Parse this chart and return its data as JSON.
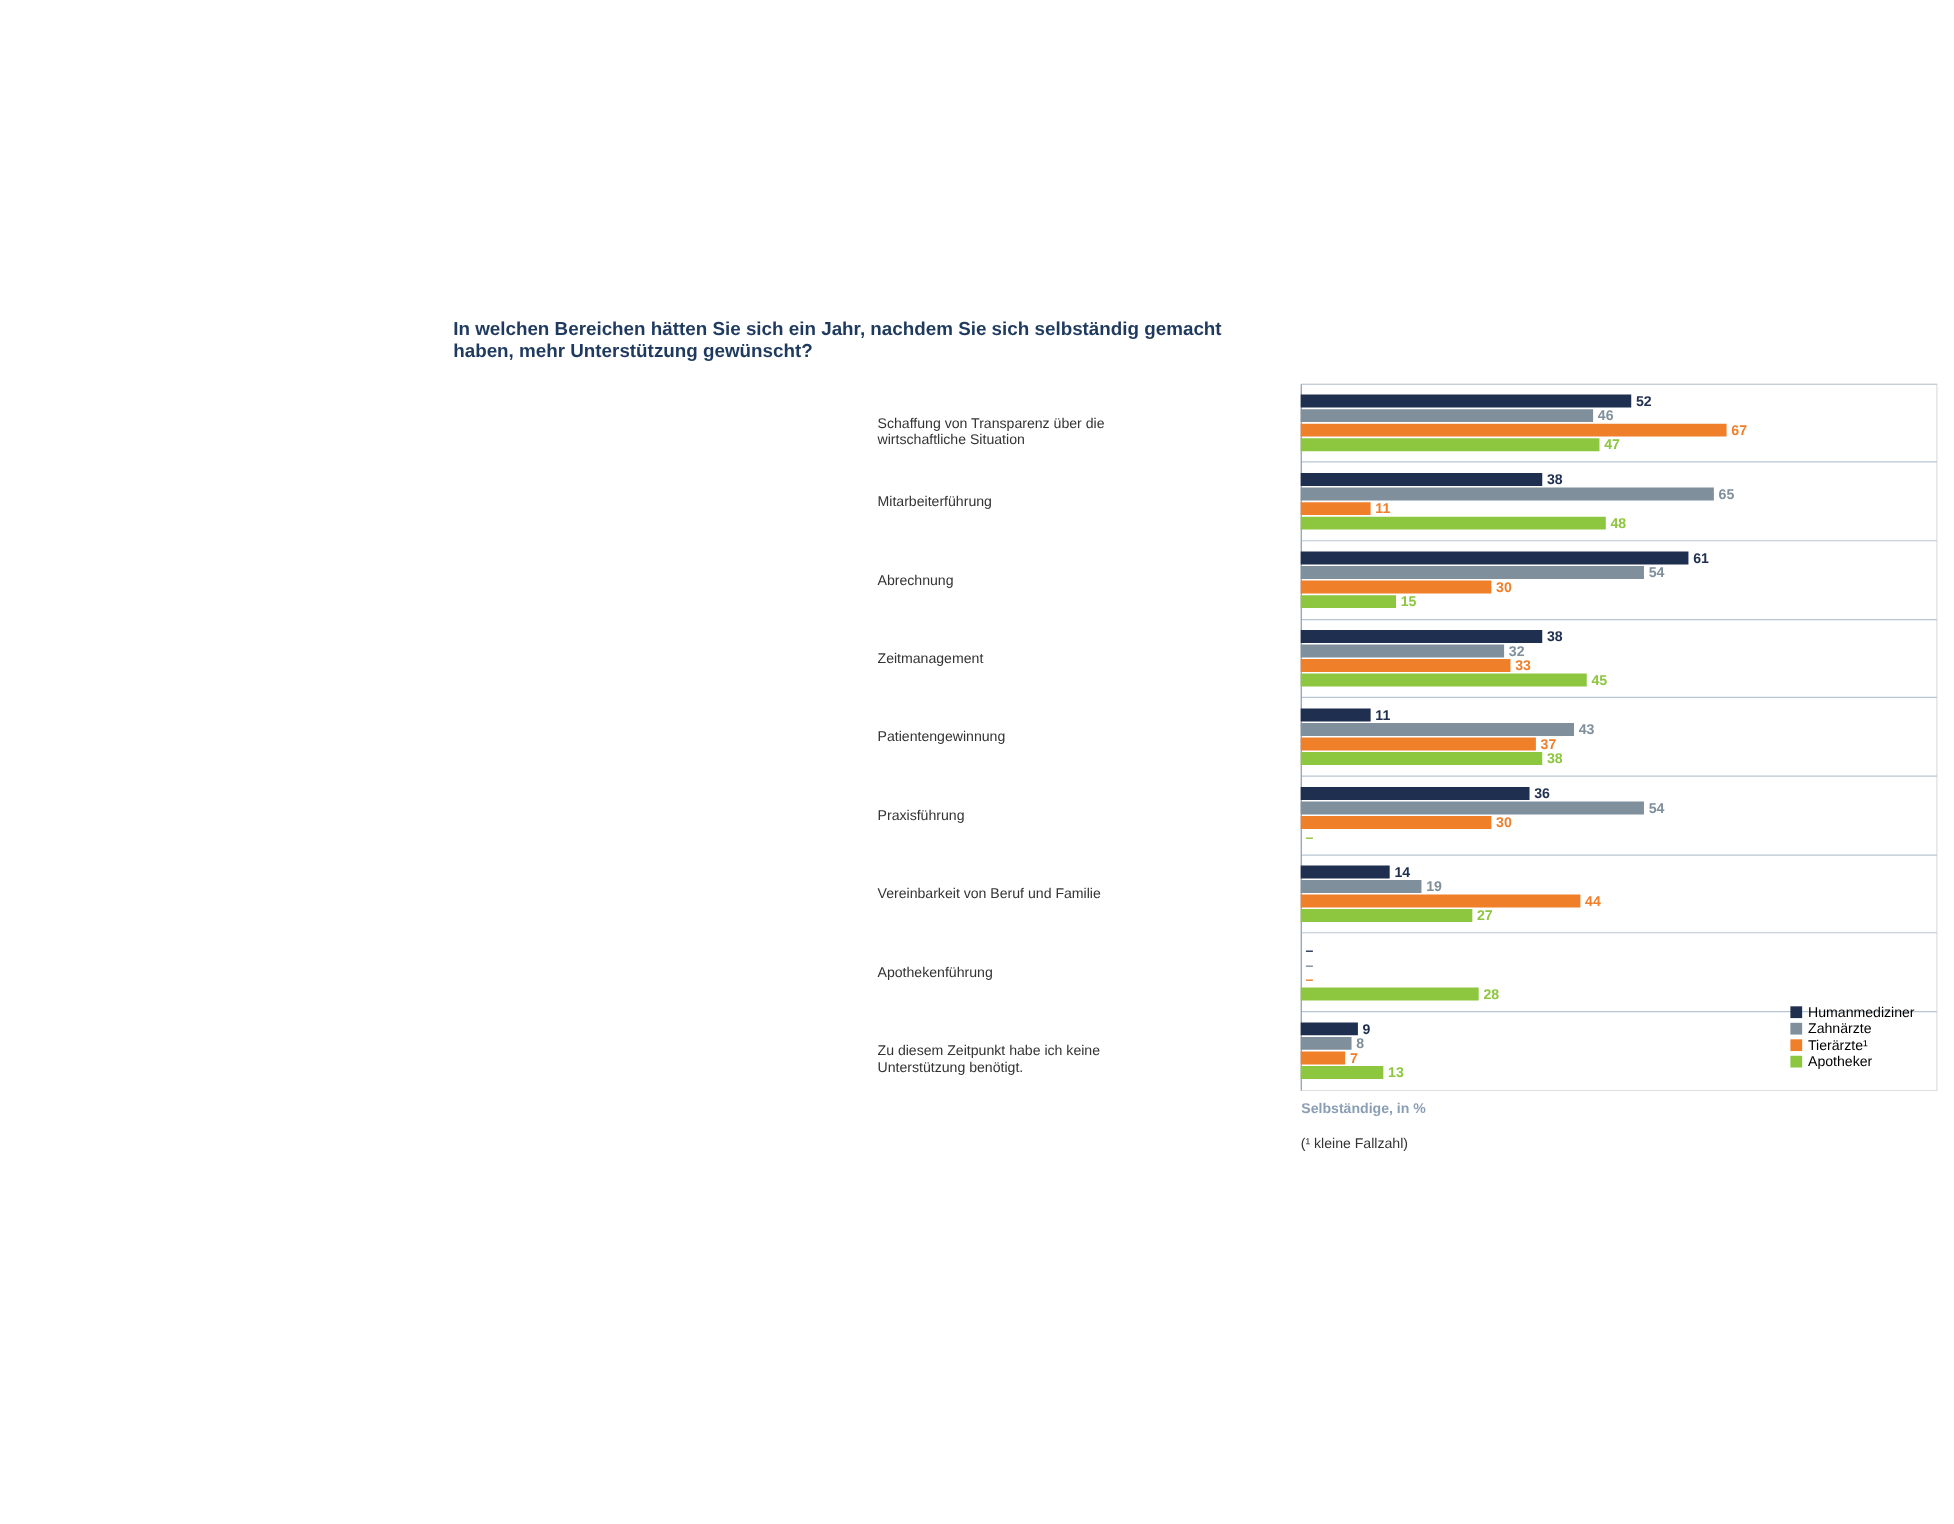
{
  "chart_data": {
    "type": "bar",
    "orientation": "horizontal",
    "title": "In welchen Bereichen hätten Sie sich ein Jahr, nachdem Sie sich selbständig gemacht haben, mehr Unterstützung gewünscht?",
    "categories": [
      "Schaffung von Transparenz über die wirtschaftliche Situation",
      "Mitarbeiterführung",
      "Abrechnung",
      "Zeitmanagement",
      "Patientengewinnung",
      "Praxisführung",
      "Vereinbarkeit von Beruf und Familie",
      "Apothekenführung",
      "Zu diesem Zeitpunkt habe ich keine Unterstützung benötigt."
    ],
    "series": [
      {
        "name": "Humanmediziner",
        "color": "#1f2f4f",
        "values": [
          52,
          38,
          61,
          38,
          11,
          36,
          14,
          null,
          9
        ],
        "value_labels": [
          "52",
          "38",
          "61",
          "38",
          "11",
          "36",
          "14",
          "–",
          "9"
        ]
      },
      {
        "name": "Zahnärzte",
        "color": "#7f8f9b",
        "values": [
          46,
          65,
          54,
          32,
          43,
          54,
          19,
          null,
          8
        ],
        "value_labels": [
          "46",
          "65",
          "54",
          "32",
          "43",
          "54",
          "19",
          "–",
          "8"
        ]
      },
      {
        "name": "Tierärzte¹",
        "color": "#f07f2a",
        "values": [
          67,
          11,
          30,
          33,
          37,
          30,
          44,
          null,
          7
        ],
        "value_labels": [
          "67",
          "11",
          "30",
          "33",
          "37",
          "30",
          "44",
          "–",
          "7"
        ]
      },
      {
        "name": "Apotheker",
        "color": "#8dc63f",
        "values": [
          47,
          48,
          15,
          45,
          38,
          null,
          27,
          28,
          13
        ],
        "value_labels": [
          "47",
          "48",
          "15",
          "45",
          "38",
          "–",
          "27",
          "28",
          "13"
        ]
      }
    ],
    "xlim": [
      0,
      100
    ],
    "tick_labels": "y",
    "grid": "y",
    "legend": "bottom right",
    "xlabel": "Selbständige, in %",
    "annotations": [
      "(¹ kleine Fallzahl)"
    ]
  }
}
